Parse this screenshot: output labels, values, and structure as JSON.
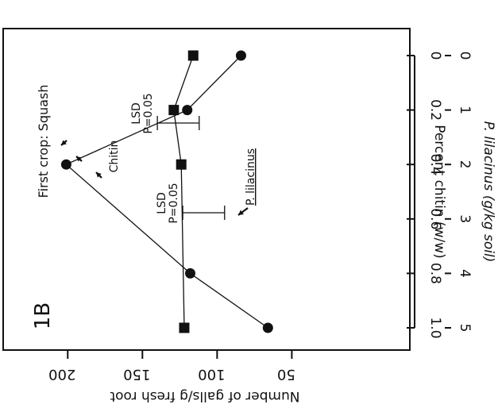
{
  "chart_data": {
    "type": "line",
    "panel_label": "1B",
    "x_bottom": {
      "label": "Percent chitin (w/w)",
      "ticks": [
        "0",
        "0.2",
        "0.4",
        "0.6",
        "0.8",
        "1.0"
      ],
      "range": [
        0,
        1.0
      ]
    },
    "x_top": {
      "label": "P. lilacinus (g/kg soil)",
      "ticks": [
        "0",
        "1",
        "2",
        "3",
        "4",
        "5"
      ],
      "range": [
        0,
        5
      ]
    },
    "y": {
      "label": "Number of galls/g fresh root",
      "ticks": [
        "50",
        "100",
        "150",
        "200"
      ],
      "range": [
        13,
        223
      ]
    },
    "series": [
      {
        "name": "Chitin",
        "marker": "circle",
        "x": [
          0,
          0.2,
          0.4,
          0.8,
          1.0
        ],
        "y": [
          84,
          120,
          201,
          118,
          66
        ]
      },
      {
        "name": "P. lilacinus",
        "marker": "square",
        "x": [
          0,
          1,
          2,
          5
        ],
        "y": [
          116,
          129,
          124,
          122
        ]
      }
    ],
    "lsd": [
      {
        "label": "LSD",
        "p": "P=0.05",
        "for": "Chitin",
        "low": 112,
        "high": 140
      },
      {
        "label": "LSD",
        "p": "P=0.05",
        "for": "P. lilacinus",
        "low": 95,
        "high": 123
      }
    ],
    "annotations": {
      "crop": "First crop: Squash",
      "chitin": "Chitin",
      "plil": "P. lilacinus"
    },
    "colors": {
      "ink": "#111111",
      "background": "#ffffff"
    }
  }
}
